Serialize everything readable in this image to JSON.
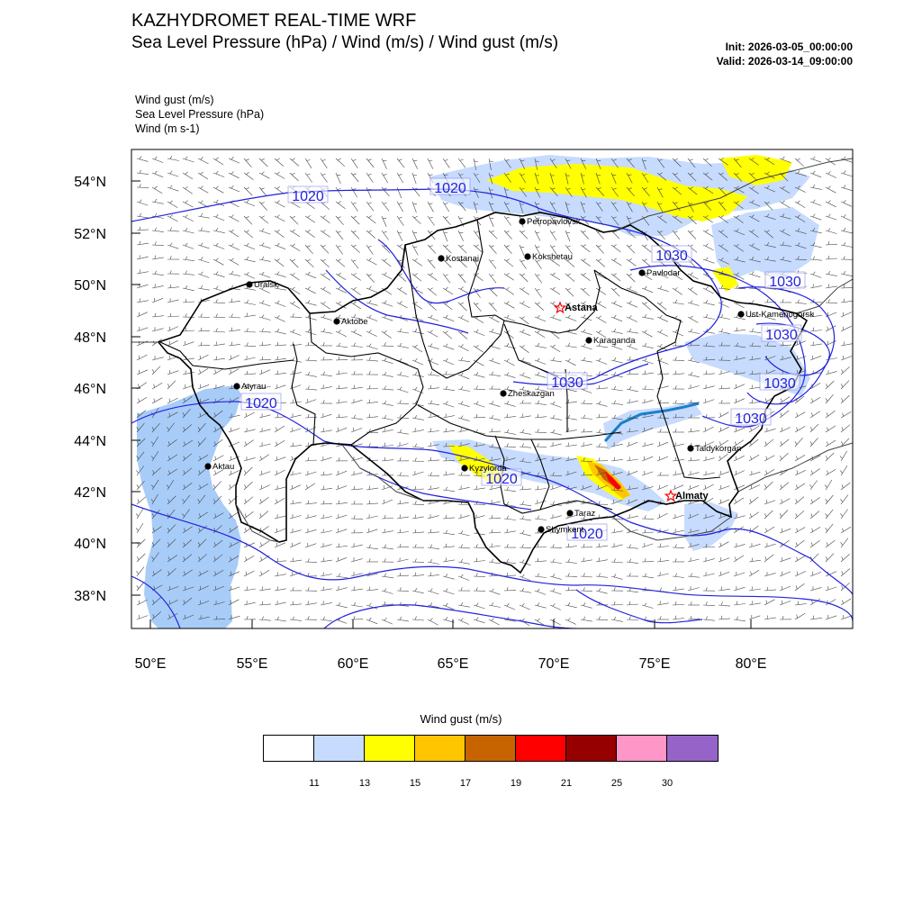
{
  "header": {
    "title": "KAZHYDROMET REAL-TIME WRF",
    "subtitle": "Sea Level Pressure  (hPa) / Wind  (m/s) / Wind gust  (m/s)",
    "init": "Init: 2026-03-05_00:00:00",
    "valid": "Valid: 2026-03-14_09:00:00"
  },
  "fields": [
    "Wind gust   (m/s)",
    "Sea Level Pressure   (hPa)",
    "Wind   (m s-1)"
  ],
  "axes": {
    "lat_labels": [
      "54°N",
      "52°N",
      "50°N",
      "48°N",
      "46°N",
      "44°N",
      "42°N",
      "40°N",
      "38°N"
    ],
    "lon_labels": [
      "50°E",
      "55°E",
      "60°E",
      "65°E",
      "70°E",
      "75°E",
      "80°E"
    ]
  },
  "cities": [
    {
      "name": "Petropavlovsk",
      "capital": false
    },
    {
      "name": "Kostanai",
      "capital": false
    },
    {
      "name": "Kokshetau",
      "capital": false
    },
    {
      "name": "Uralsk",
      "capital": false
    },
    {
      "name": "Pavlodar",
      "capital": false
    },
    {
      "name": "Aktobe",
      "capital": false
    },
    {
      "name": "Astana",
      "capital": true
    },
    {
      "name": "Ust-Kamenogorsk",
      "capital": false
    },
    {
      "name": "Karaganda",
      "capital": false
    },
    {
      "name": "Atyrau",
      "capital": false
    },
    {
      "name": "Zheskazgan",
      "capital": false
    },
    {
      "name": "Taldykorgan",
      "capital": false
    },
    {
      "name": "Aktau",
      "capital": false
    },
    {
      "name": "Kyzylorda",
      "capital": false
    },
    {
      "name": "Almaty",
      "capital": true
    },
    {
      "name": "Taraz",
      "capital": false
    },
    {
      "name": "Shymkent",
      "capital": false
    }
  ],
  "isobar_labels": [
    "1020",
    "1020",
    "1030",
    "1030",
    "1030",
    "1020",
    "1030",
    "1030",
    "1030",
    "1020",
    "1020"
  ],
  "legend": {
    "title": "Wind gust (m/s)",
    "colors": [
      "#ffffff",
      "#c6dbfd",
      "#ffff00",
      "#ffc600",
      "#c86400",
      "#ff0000",
      "#960000",
      "#ff96c8",
      "#9664c8"
    ],
    "ticks": [
      "11",
      "13",
      "15",
      "17",
      "19",
      "21",
      "25",
      "30"
    ]
  }
}
